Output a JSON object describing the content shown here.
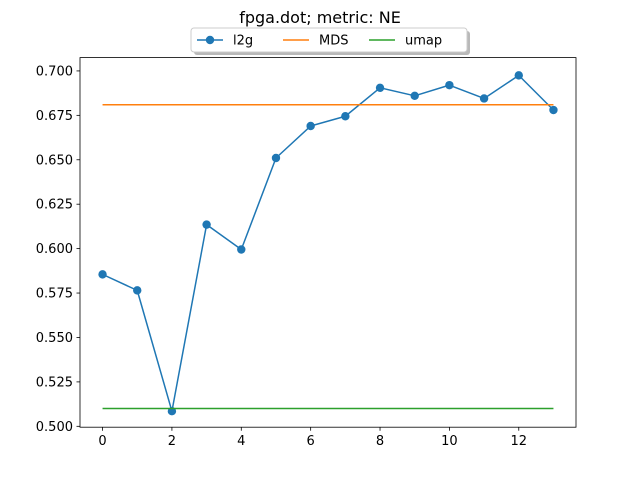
{
  "chart_data": {
    "type": "line",
    "title": "fpga.dot; metric: NE",
    "xlabel": "",
    "ylabel": "",
    "xlim": [
      -0.65,
      13.65
    ],
    "ylim": [
      0.4995,
      0.7075
    ],
    "xticks": [
      0,
      2,
      4,
      6,
      8,
      10,
      12
    ],
    "yticks": [
      0.5,
      0.525,
      0.55,
      0.575,
      0.6,
      0.625,
      0.65,
      0.675,
      0.7
    ],
    "ytick_labels": [
      "0.500",
      "0.525",
      "0.550",
      "0.575",
      "0.600",
      "0.625",
      "0.650",
      "0.675",
      "0.700"
    ],
    "grid": false,
    "legend_position": "top-center",
    "series": [
      {
        "name": "l2g",
        "color": "#1f77b4",
        "marker": "circle",
        "x": [
          0,
          1,
          2,
          3,
          4,
          5,
          6,
          7,
          8,
          9,
          10,
          11,
          12,
          13
        ],
        "y": [
          0.5855,
          0.5765,
          0.5085,
          0.6135,
          0.5995,
          0.651,
          0.669,
          0.6745,
          0.6905,
          0.686,
          0.692,
          0.6845,
          0.6975,
          0.678
        ]
      },
      {
        "name": "MDS",
        "color": "#ff7f0e",
        "marker": "none",
        "x": [
          0,
          13
        ],
        "y": [
          0.681,
          0.681
        ]
      },
      {
        "name": "umap",
        "color": "#2ca02c",
        "marker": "none",
        "x": [
          0,
          13
        ],
        "y": [
          0.51,
          0.51
        ]
      }
    ]
  }
}
